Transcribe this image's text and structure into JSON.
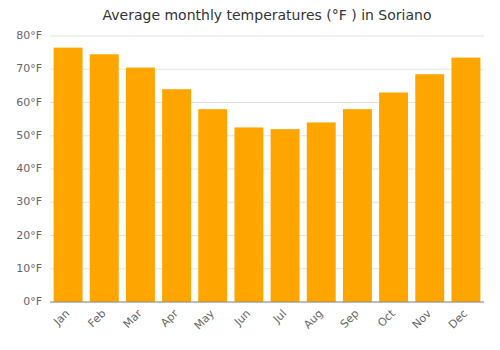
{
  "chart_data": {
    "type": "bar",
    "title": "Average monthly temperatures (°F ) in Soriano",
    "categories": [
      "Jan",
      "Feb",
      "Mar",
      "Apr",
      "May",
      "Jun",
      "Jul",
      "Aug",
      "Sep",
      "Oct",
      "Nov",
      "Dec"
    ],
    "values": [
      76.5,
      74.5,
      70.5,
      64.0,
      58.0,
      52.5,
      52.0,
      54.0,
      58.0,
      63.0,
      68.5,
      73.5
    ],
    "color": "#FFA500",
    "ylim": [
      0,
      80
    ],
    "yticks": [
      {
        "value": 0,
        "label": "0°F"
      },
      {
        "value": 10,
        "label": "10°F"
      },
      {
        "value": 20,
        "label": "20°F"
      },
      {
        "value": 30,
        "label": "30°F"
      },
      {
        "value": 40,
        "label": "40°F"
      },
      {
        "value": 50,
        "label": "50°F"
      },
      {
        "value": 60,
        "label": "60°F"
      },
      {
        "value": 70,
        "label": "70°F"
      },
      {
        "value": 80,
        "label": "80°F"
      }
    ],
    "grid": true
  }
}
